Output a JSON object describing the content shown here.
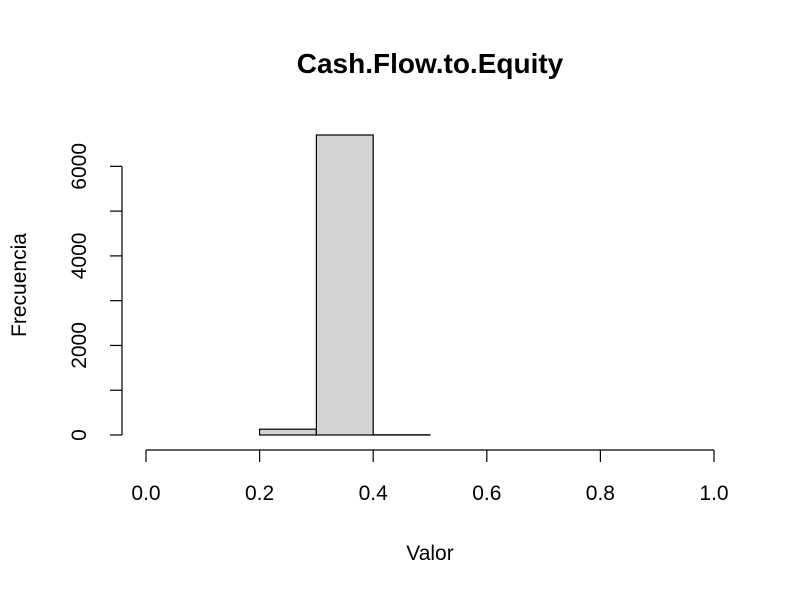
{
  "chart_data": {
    "type": "histogram",
    "title": "Cash.Flow.to.Equity",
    "xlabel": "Valor",
    "ylabel": "Frecuencia",
    "xlim": [
      0,
      1
    ],
    "ylim": [
      0,
      6700
    ],
    "x_ticks": [
      0.0,
      0.2,
      0.4,
      0.6,
      0.8,
      1.0
    ],
    "x_tick_labels": [
      "0.0",
      "0.2",
      "0.4",
      "0.6",
      "0.8",
      "1.0"
    ],
    "y_ticks": [
      0,
      1000,
      2000,
      3000,
      4000,
      5000,
      6000
    ],
    "y_tick_labels": [
      "0",
      "",
      "2000",
      "",
      "4000",
      "",
      "6000"
    ],
    "bins": [
      {
        "start": 0.0,
        "end": 0.1,
        "count": 0
      },
      {
        "start": 0.1,
        "end": 0.2,
        "count": 0
      },
      {
        "start": 0.2,
        "end": 0.3,
        "count": 130
      },
      {
        "start": 0.3,
        "end": 0.4,
        "count": 6700
      },
      {
        "start": 0.4,
        "end": 0.5,
        "count": 5
      },
      {
        "start": 0.5,
        "end": 0.6,
        "count": 0
      },
      {
        "start": 0.6,
        "end": 0.7,
        "count": 0
      },
      {
        "start": 0.7,
        "end": 0.8,
        "count": 0
      },
      {
        "start": 0.8,
        "end": 0.9,
        "count": 0
      },
      {
        "start": 0.9,
        "end": 1.0,
        "count": 0
      }
    ],
    "bar_color": "#d3d3d3",
    "grid": false
  }
}
